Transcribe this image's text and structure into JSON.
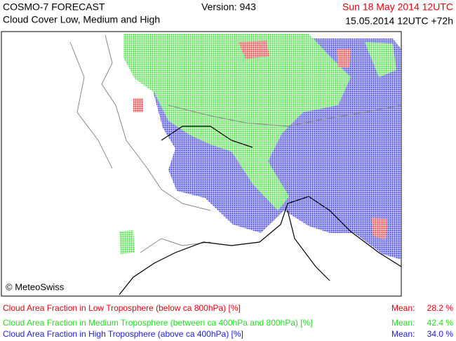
{
  "header": {
    "title": "COSMO-7 FORECAST",
    "subtitle": "Cloud Cover Low, Medium and High",
    "version": "Version: 943",
    "valid_time": "Sun 18 May 2014 12UTC",
    "run": "15.05.2014 12UTC +72h"
  },
  "map": {
    "credit": "© MeteoSwiss"
  },
  "legend": [
    {
      "label": "Cloud Area Fraction in Low Troposphere (below ca 800hPa) [%]",
      "mean_label": "Mean:",
      "mean": "28.2 %",
      "color": "#e8000b"
    },
    {
      "label": "Cloud Area Fraction in Medium Troposphere (between ca 400hPa and 800hPa) [%]",
      "mean_label": "Mean:",
      "mean": "42.4 %",
      "color": "#22dd22"
    },
    {
      "label": "Cloud Area Fraction in High Troposphere (above ca 400hPa) [%]",
      "mean_label": "Mean:",
      "mean": "34.0 %",
      "color": "#2020e0"
    }
  ]
}
